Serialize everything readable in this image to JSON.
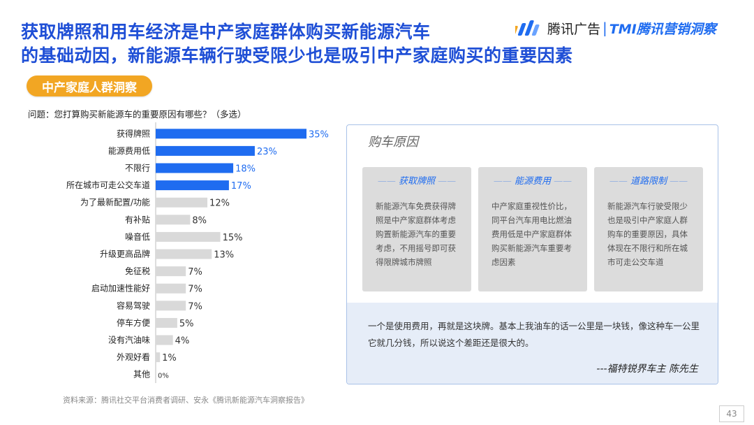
{
  "header": {
    "title_line1": "获取牌照和用车经济是中产家庭群体购买新能源汽车",
    "title_line2": "的基础动因，新能源车辆行驶受限少也是吸引中产家庭购买的重要因素",
    "logo_brand": "腾讯广告",
    "logo_separator": "|",
    "logo_sub": "TMI腾讯营销洞察"
  },
  "section_tag": "中产家庭人群洞察",
  "question": "问题：您打算购买新能源车的重要原因有哪些？（多选）",
  "colors": {
    "highlight": "#1f6cf0",
    "other": "#d9d9d9",
    "title": "#1f4fd6",
    "tag": "#f2a623"
  },
  "chart_data": {
    "type": "bar",
    "orientation": "horizontal",
    "categories": [
      "获得牌照",
      "能源费用低",
      "不限行",
      "所在城市可走公交车道",
      "为了最新配置/功能",
      "有补贴",
      "噪音低",
      "升级更高品牌",
      "免征税",
      "启动加速性能好",
      "容易驾驶",
      "停车方便",
      "没有汽油味",
      "外观好看",
      "其他"
    ],
    "values": [
      35,
      23,
      18,
      17,
      12,
      8,
      15,
      13,
      7,
      7,
      7,
      5,
      4,
      1,
      0
    ],
    "value_labels": [
      "35%",
      "23%",
      "18%",
      "17%",
      "12%",
      "8%",
      "15%",
      "13%",
      "7%",
      "7%",
      "7%",
      "5%",
      "4%",
      "1%",
      "0%"
    ],
    "highlighted": [
      true,
      true,
      true,
      true,
      false,
      false,
      false,
      false,
      false,
      false,
      false,
      false,
      false,
      false,
      false
    ],
    "xlim": [
      0,
      35
    ]
  },
  "panel": {
    "title": "购车原因",
    "cards": [
      {
        "heading": "获取牌照",
        "body": "新能源汽车免费获得牌照是中产家庭群体考虑购置新能源汽车的重要考虑，不用摇号即可获得限牌城市牌照"
      },
      {
        "heading": "能源费用",
        "body": "中产家庭重视性价比，同平台汽车用电比燃油费用低是中产家庭群体购买新能源汽车重要考虑因素"
      },
      {
        "heading": "道路限制",
        "body": "新能源汽车行驶受限少也是吸引中产家庭人群购车的重要原因，具体体现在不限行和所在城市可走公交车道"
      }
    ],
    "quote": "一个是使用费用，再就是这块牌。基本上我油车的话一公里是一块钱，像这种车一公里它就几分钱，所以说这个差距还是很大的。",
    "quote_author": "---福特锐界车主 陈先生"
  },
  "source": "资料来源：腾讯社交平台消费者调研、安永《腾讯新能源汽车洞察报告》",
  "page_number": "43"
}
